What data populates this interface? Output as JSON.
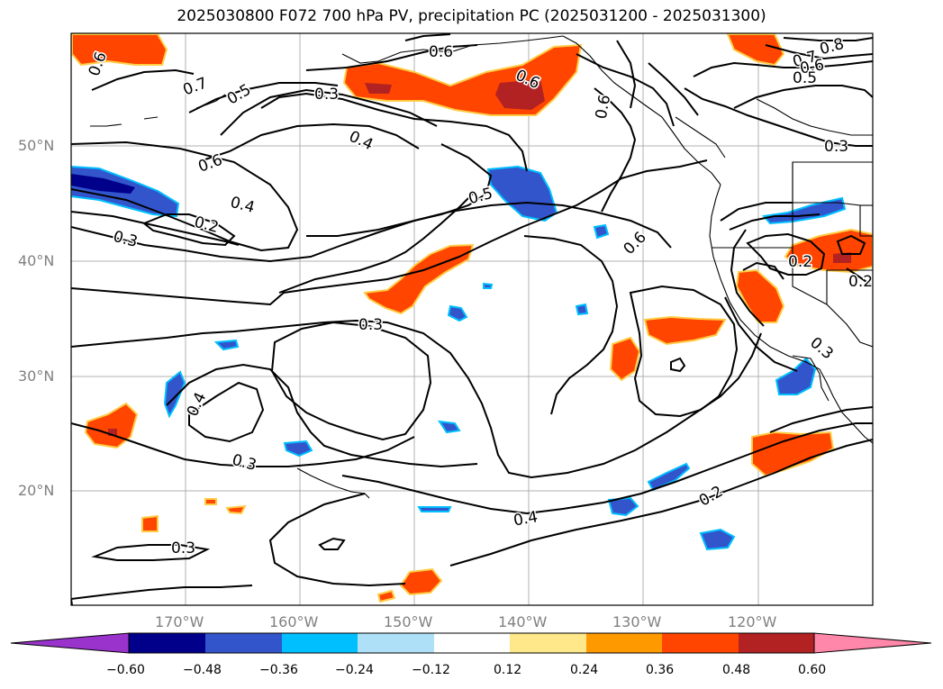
{
  "title": "2025030800 F072 700 hPa PV, precipitation PC (2025031200 - 2025031300)",
  "lat_labels": [
    "50°N",
    "40°N",
    "30°N",
    "20°N"
  ],
  "lon_labels": [
    "170°W",
    "160°W",
    "150°W",
    "140°W",
    "130°W",
    "120°W"
  ],
  "colorbar": {
    "ticks": [
      "−0.60",
      "−0.48",
      "−0.36",
      "−0.24",
      "−0.12",
      "0.12",
      "0.24",
      "0.36",
      "0.48",
      "0.60"
    ],
    "colors": [
      "#9933cc",
      "#00008b",
      "#3355cc",
      "#00bfff",
      "#aee0f7",
      "#ffffff",
      "#ffe88a",
      "#ff9900",
      "#ff4500",
      "#b22222",
      "#ff88aa"
    ]
  },
  "contour_labels": [
    "0.6",
    "0.7",
    "0.5",
    "0.3",
    "0.6",
    "0.4",
    "0.6",
    "0.4",
    "0.2",
    "0.3",
    "0.5",
    "0.6",
    "0.6",
    "0.8",
    "0.7",
    "0.6",
    "0.5",
    "0.3",
    "0.2",
    "0.2",
    "0.3",
    "0.4",
    "0.3",
    "0.3",
    "0.4",
    "0.2",
    "0.3",
    "0.6"
  ]
}
